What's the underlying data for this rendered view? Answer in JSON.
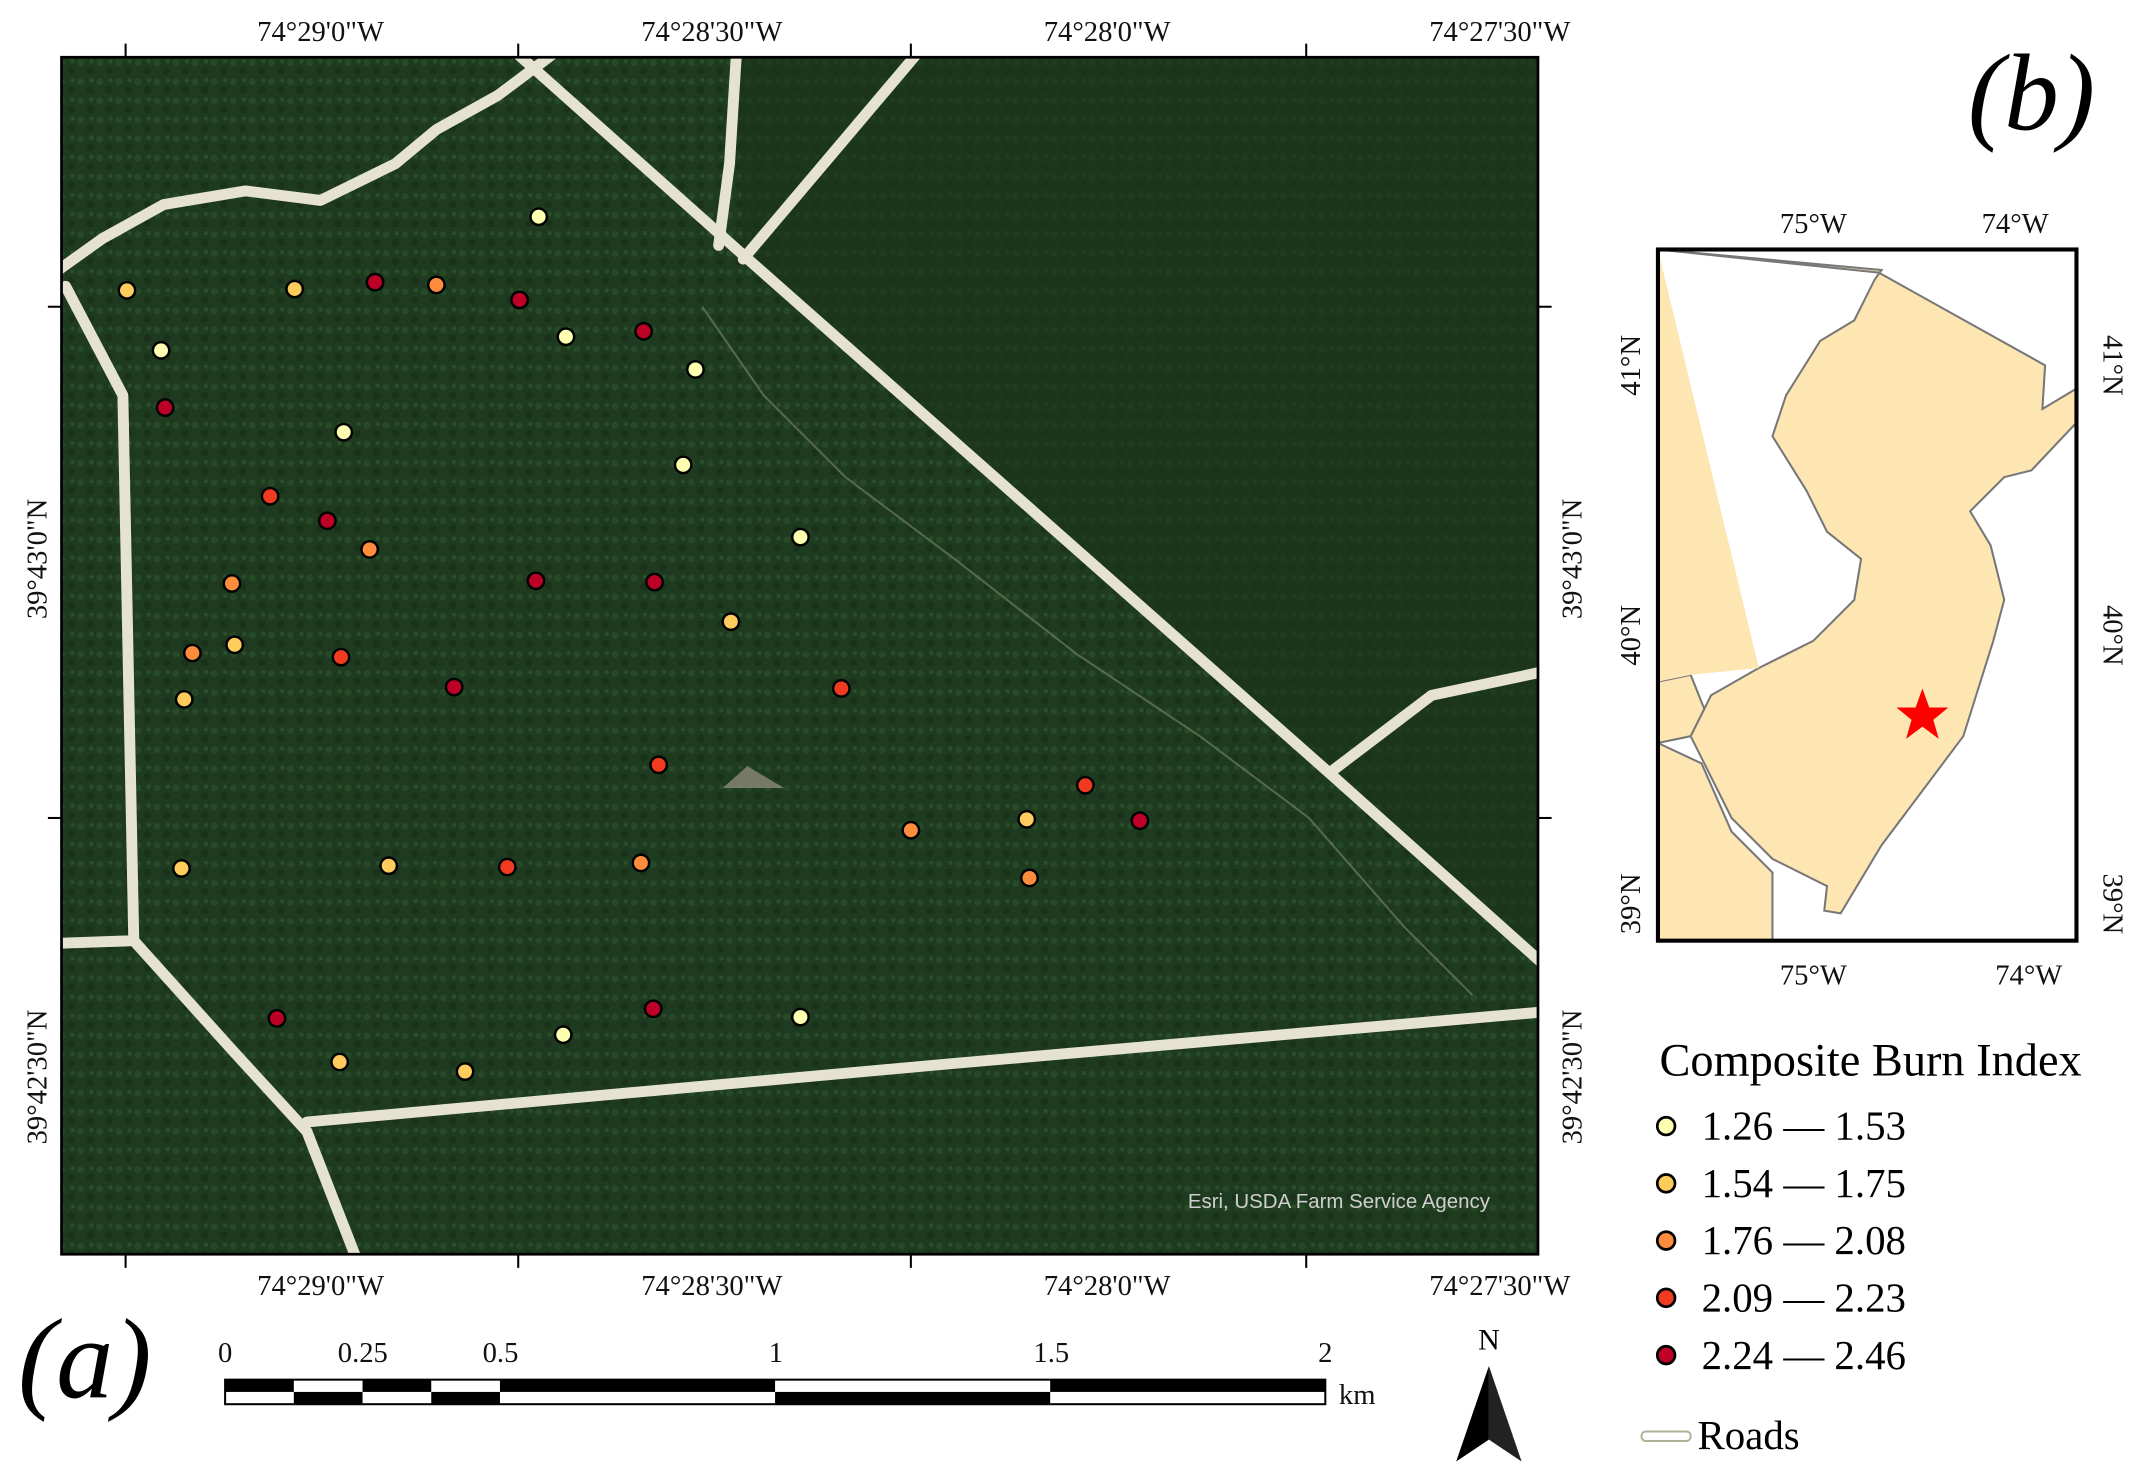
{
  "panel_a": {
    "label": "(a)",
    "attribution": "Esri, USDA Farm Service Agency",
    "lon_ticks": [
      "74°29'0\"W",
      "74°28'30\"W",
      "74°28'0\"W",
      "74°27'30\"W"
    ],
    "lat_ticks": [
      "39°43'0\"N",
      "39°42'30\"N"
    ],
    "scale_bar": {
      "labels": [
        "0",
        "0.25",
        "0.5",
        "1",
        "1.5",
        "2"
      ],
      "unit": "km"
    },
    "north": "N"
  },
  "panel_b": {
    "label": "(b)",
    "lon_ticks": [
      "75°W",
      "74°W"
    ],
    "lat_ticks": [
      "41°N",
      "40°N",
      "39°N"
    ]
  },
  "legend": {
    "title": "Composite Burn Index",
    "items": [
      {
        "label": "1.26 — 1.53",
        "color": "#ffffb2"
      },
      {
        "label": "1.54 — 1.75",
        "color": "#fecc5c"
      },
      {
        "label": "1.76 — 2.08",
        "color": "#fd8d3c"
      },
      {
        "label": "2.09 — 2.23",
        "color": "#f03b20"
      },
      {
        "label": "2.24 — 2.46",
        "color": "#bd0026"
      }
    ],
    "roads": "Roads"
  }
}
